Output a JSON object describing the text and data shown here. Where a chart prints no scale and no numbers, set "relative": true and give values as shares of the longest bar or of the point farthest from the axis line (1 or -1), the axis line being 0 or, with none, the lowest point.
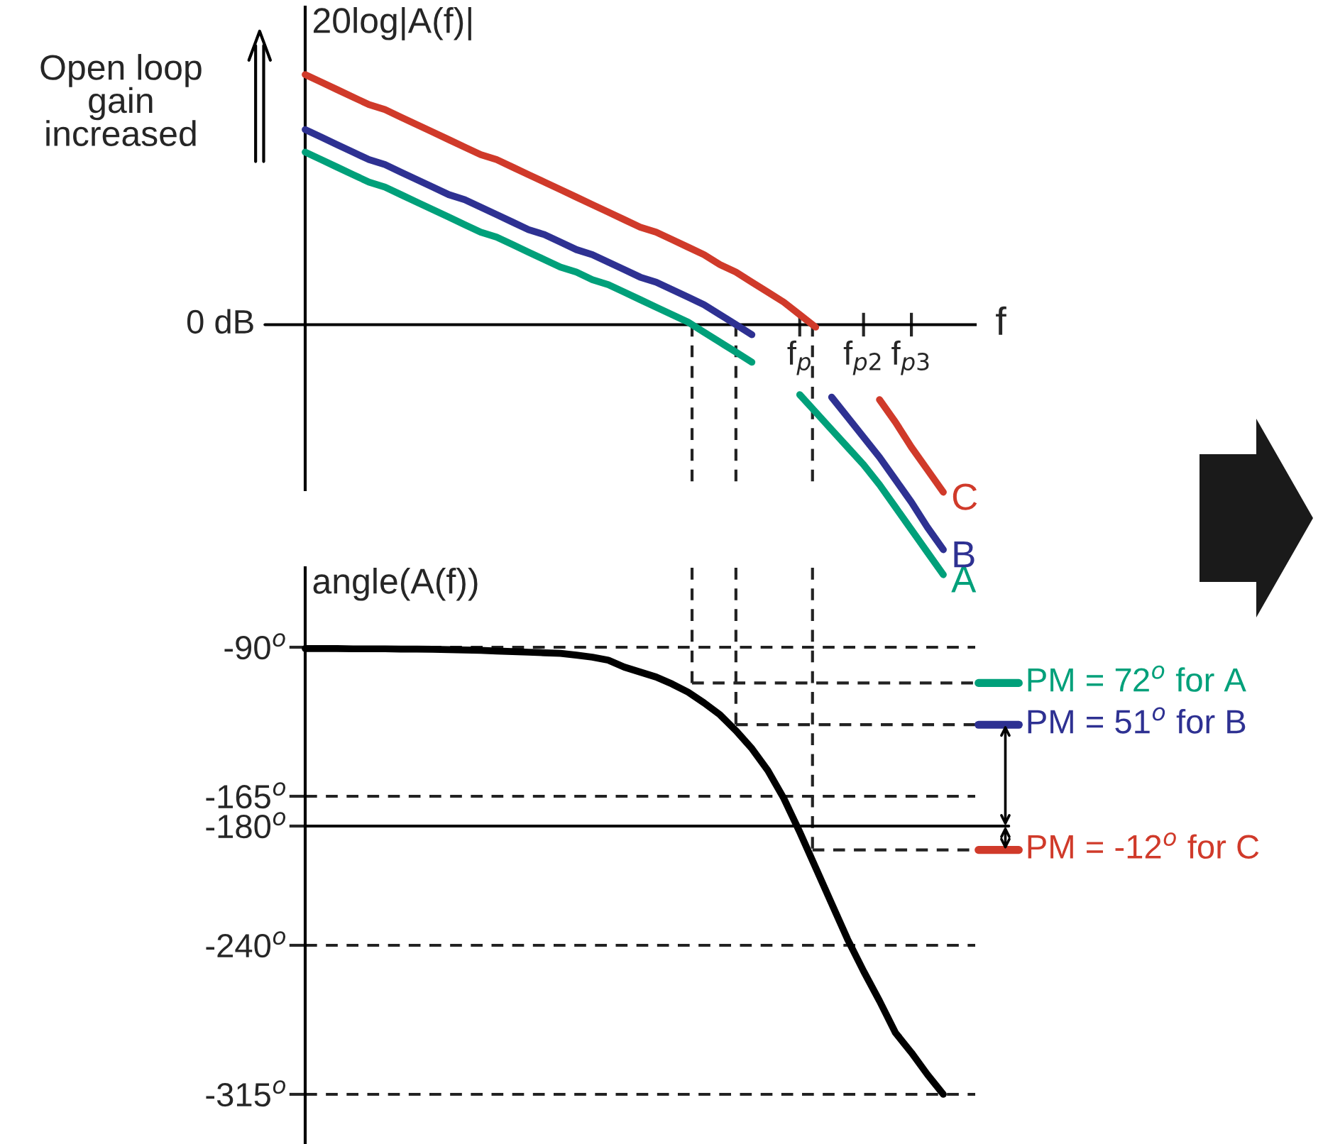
{
  "chart_data": [
    {
      "type": "line",
      "relative": true,
      "ylabel": "20log|A(f)|",
      "xlabel": "f",
      "categories": [
        null,
        null,
        null,
        null,
        null,
        null,
        null,
        null,
        null,
        null,
        null,
        null,
        null,
        null,
        null,
        null,
        null,
        null,
        null,
        null,
        null,
        null,
        null,
        null,
        null,
        null,
        null,
        null,
        null,
        null,
        null,
        "f$_{p}$",
        null,
        null,
        null,
        "f$_{p2}$",
        null,
        null,
        "f$_{p3}$",
        null,
        null,
        null,
        null
      ],
      "series": [
        {
          "name": "A",
          "color": "#00a07a",
          "values": [
            0.69,
            0.66,
            0.63,
            0.6,
            0.57,
            0.55,
            0.52,
            0.49,
            0.46,
            0.43,
            0.4,
            0.37,
            0.35,
            0.32,
            0.29,
            0.26,
            0.23,
            0.21,
            0.18,
            0.16,
            0.13,
            0.1,
            0.07,
            0.04,
            0.01,
            -0.03,
            -0.07,
            -0.11,
            -0.15,
            null,
            null,
            -0.28,
            -0.35,
            -0.42,
            -0.49,
            -0.56,
            -0.64,
            -0.73,
            -0.82,
            -0.91,
            -1.0,
            null,
            null
          ]
        },
        {
          "name": "B",
          "color": "#2e3192",
          "values": [
            0.78,
            0.75,
            0.72,
            0.69,
            0.66,
            0.64,
            0.61,
            0.58,
            0.55,
            0.52,
            0.5,
            0.47,
            0.44,
            0.41,
            0.38,
            0.36,
            0.33,
            0.3,
            0.28,
            0.25,
            0.22,
            0.19,
            0.17,
            0.14,
            0.11,
            0.08,
            0.04,
            0.0,
            -0.04,
            null,
            null,
            null,
            null,
            -0.29,
            -0.37,
            -0.45,
            -0.53,
            -0.62,
            -0.71,
            -0.81,
            -0.9,
            null,
            null
          ]
        },
        {
          "name": "C",
          "color": "#d03a2a",
          "values": [
            1.0,
            0.97,
            0.94,
            0.91,
            0.88,
            0.86,
            0.83,
            0.8,
            0.77,
            0.74,
            0.71,
            0.68,
            0.66,
            0.63,
            0.6,
            0.57,
            0.54,
            0.51,
            0.48,
            0.45,
            0.42,
            0.39,
            0.37,
            0.34,
            0.31,
            0.28,
            0.24,
            0.21,
            0.17,
            0.13,
            0.09,
            0.04,
            -0.01,
            null,
            null,
            null,
            -0.3,
            -0.39,
            -0.49,
            -0.58,
            -0.67,
            null,
            null
          ]
        }
      ],
      "annotations": [
        "0 dB",
        "Open loop\ngain\nincreased"
      ]
    },
    {
      "type": "line",
      "ylabel": "angle(A(f))",
      "ylim": [
        -340,
        -50
      ],
      "tick_labels": "y",
      "grid": "y",
      "categories": [
        null,
        null,
        null,
        null,
        null,
        null,
        null,
        null,
        null,
        null,
        null,
        null,
        null,
        null,
        null,
        null,
        null,
        null,
        null,
        null,
        null,
        null,
        null,
        null,
        null,
        null,
        null,
        null,
        null,
        null,
        null,
        null,
        null,
        null,
        null,
        null,
        null,
        null,
        null,
        null,
        null,
        null,
        null
      ],
      "yticks": [
        {
          "value": -90,
          "label": "-90$^{o}$"
        },
        {
          "value": -165,
          "label": "-165$^{o}$"
        },
        {
          "value": -180,
          "label": "-180$^{o}$"
        },
        {
          "value": -240,
          "label": "-240$^{o}$"
        },
        {
          "value": -315,
          "label": "-315$^{o}$"
        }
      ],
      "series": [
        {
          "color": "#000000",
          "values": [
            -90.7,
            -90.7,
            -90.7,
            -90.8,
            -90.8,
            -90.8,
            -90.9,
            -90.9,
            -91.0,
            -91.2,
            -91.4,
            -91.6,
            -91.9,
            -92.2,
            -92.5,
            -92.8,
            -93.1,
            -94,
            -95,
            -96.5,
            -100,
            -102.5,
            -105,
            -108.5,
            -112.6,
            -118,
            -124,
            -132,
            -141,
            -152,
            -166,
            -183,
            -201,
            -219,
            -237,
            -253,
            -268,
            -284,
            -294,
            -305,
            -315,
            null,
            null
          ]
        }
      ],
      "ref_lines": [
        {
          "axis": "y",
          "value": -180,
          "color": "#000000",
          "line_style": "solid"
        },
        {
          "axis": "y",
          "value": -108,
          "color": "#222222",
          "line_style": "dashed"
        },
        {
          "axis": "y",
          "value": -129,
          "color": "#222222",
          "line_style": "dashed"
        },
        {
          "axis": "y",
          "value": -192,
          "color": "#222222",
          "line_style": "dashed"
        }
      ],
      "annotations": [
        "PM = 72$^{o}$ for A",
        "PM = 51$^{o}$ for B",
        "PM = -12$^{o}$ for C"
      ]
    }
  ]
}
